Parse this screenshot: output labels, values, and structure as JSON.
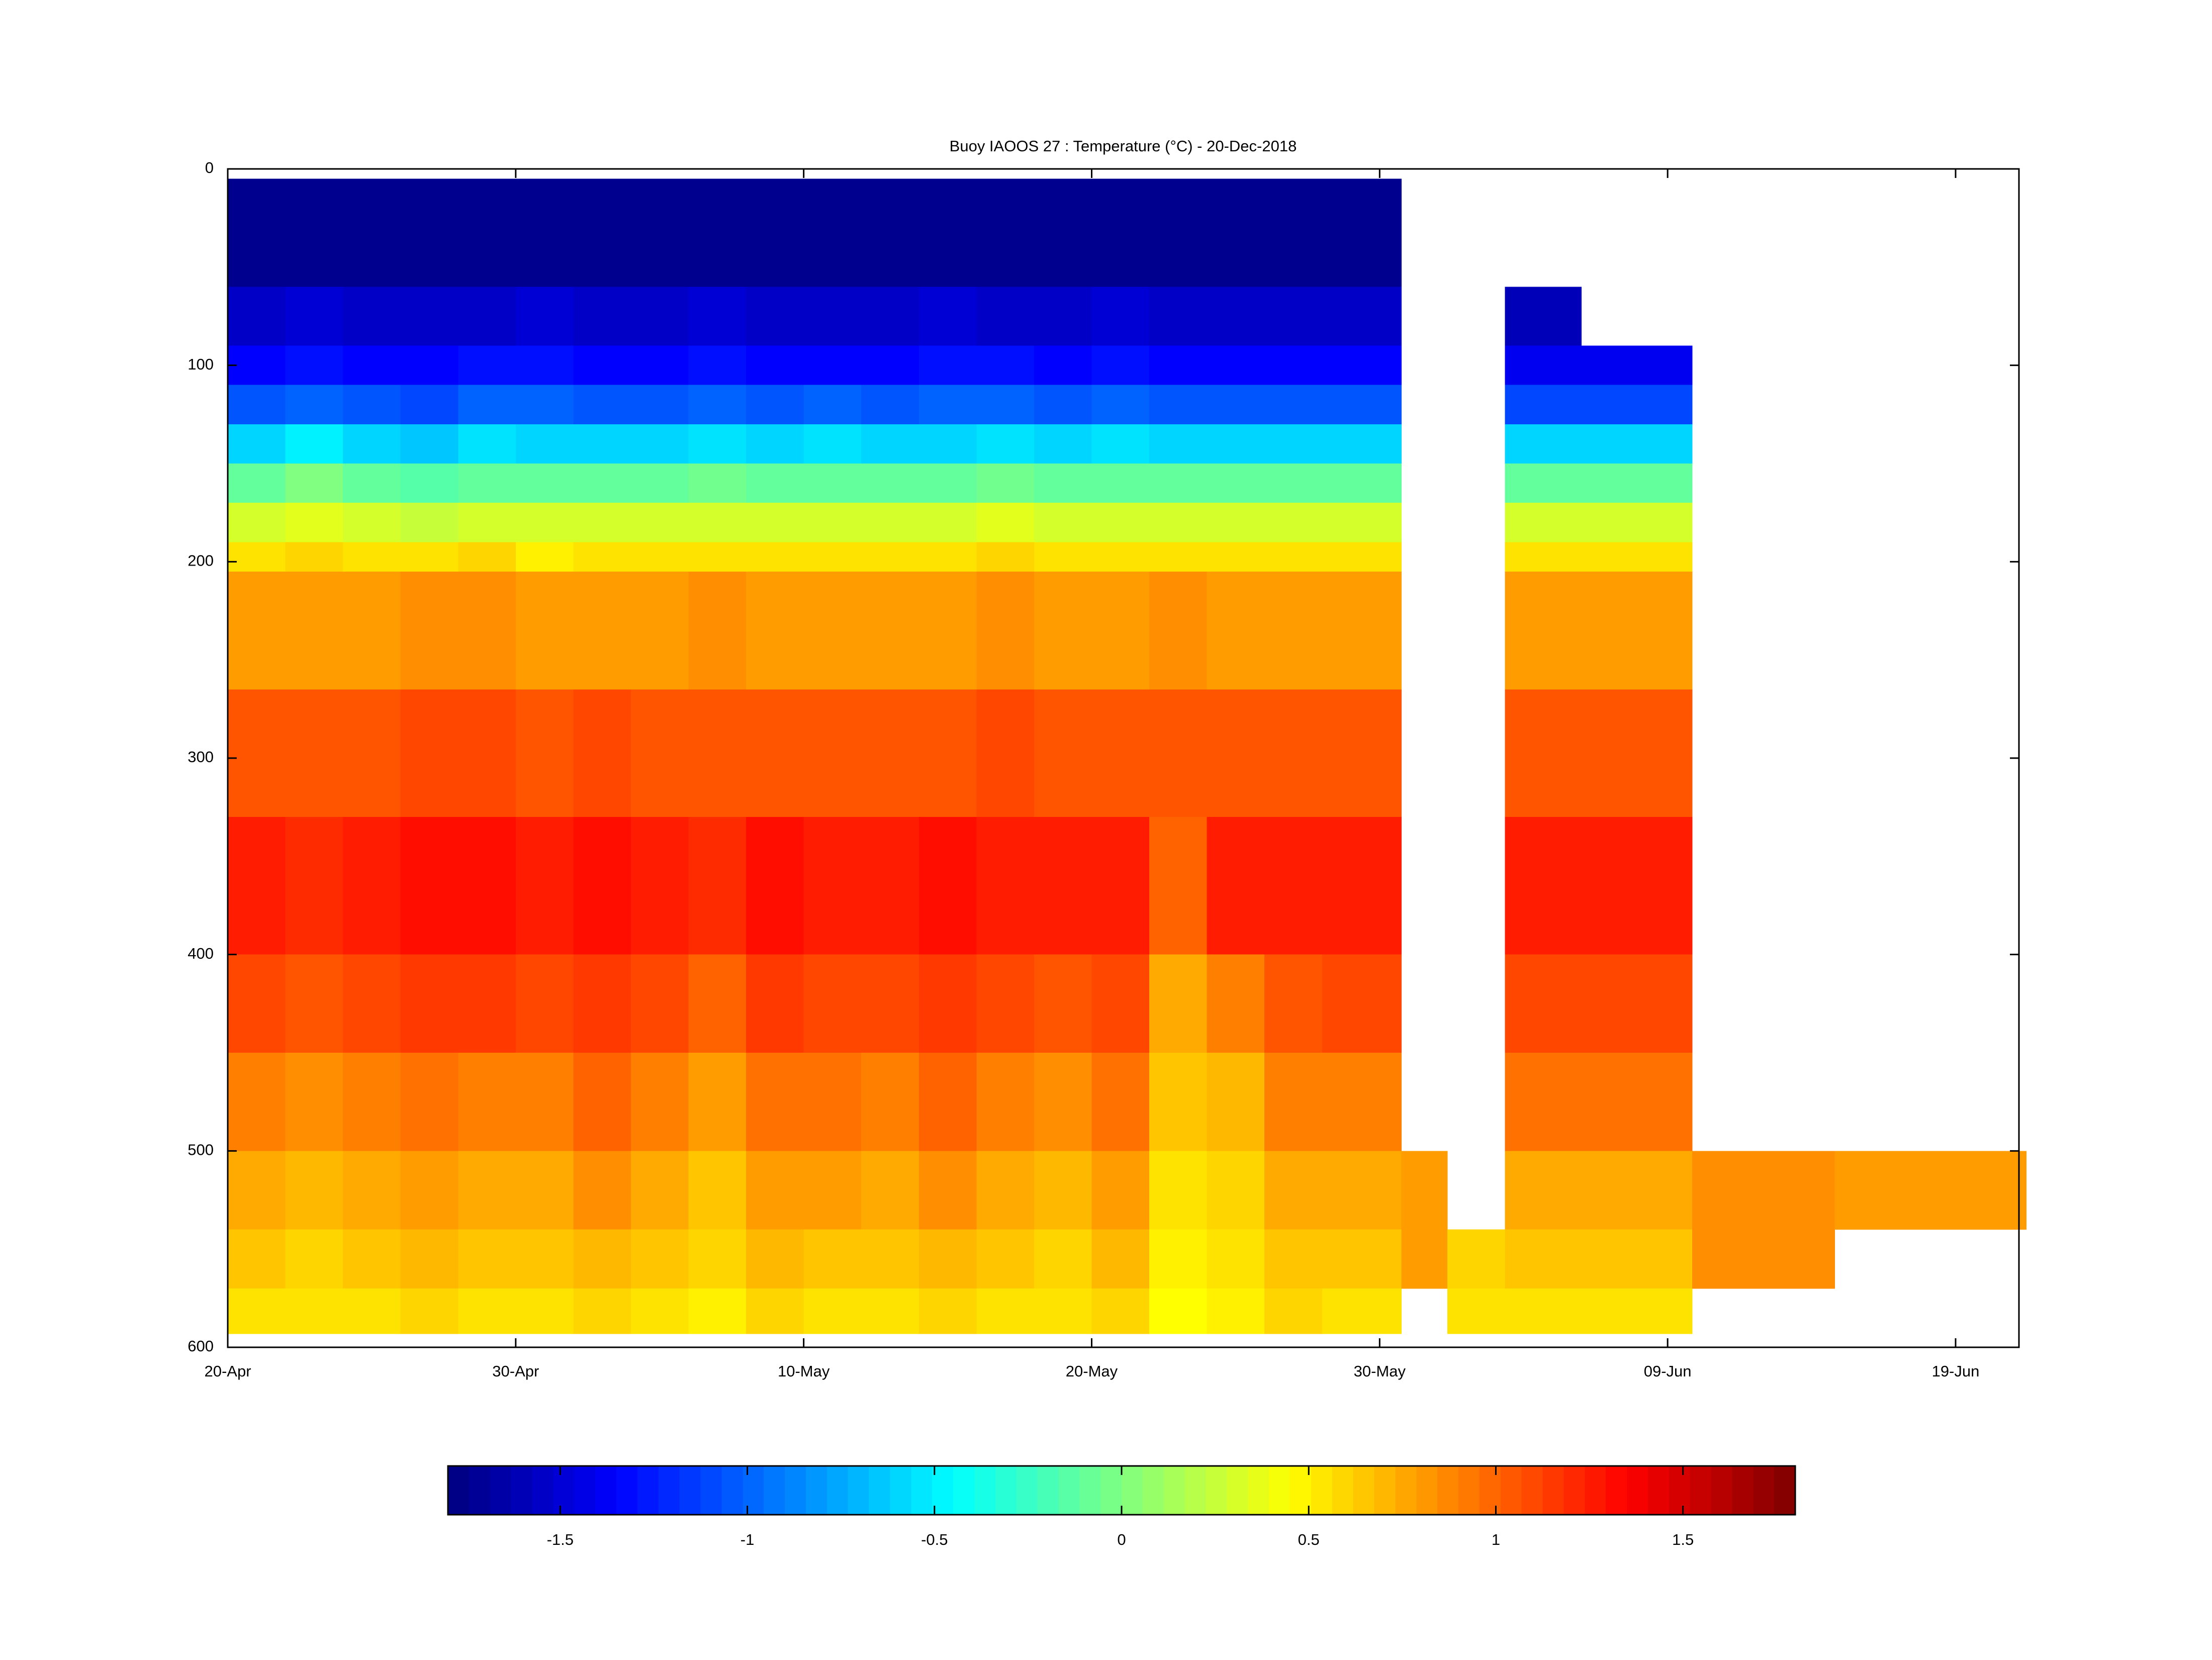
{
  "chart_data": {
    "type": "heatmap",
    "title": "Buoy IAOOS 27 : Temperature (°C) - 20-Dec-2018",
    "x_bins": [
      0,
      2,
      4,
      6,
      8,
      10,
      12,
      14,
      16,
      18,
      20,
      22,
      24,
      26,
      28,
      30,
      32,
      34,
      36,
      38,
      40.75,
      42.35,
      44.35,
      47,
      50.85,
      55.8,
      62.45
    ],
    "y_bins": [
      5,
      60,
      90,
      110,
      130,
      150,
      170,
      190,
      205,
      265,
      330,
      400,
      450,
      500,
      540,
      570,
      593
    ],
    "xlim": [
      0,
      62.2
    ],
    "ylim": [
      0,
      600
    ],
    "xticks": [
      {
        "value": 0,
        "label": "20-Apr"
      },
      {
        "value": 10,
        "label": "30-Apr"
      },
      {
        "value": 20,
        "label": "10-May"
      },
      {
        "value": 30,
        "label": "20-May"
      },
      {
        "value": 40,
        "label": "30-May"
      },
      {
        "value": 50,
        "label": "09-Jun"
      },
      {
        "value": 60,
        "label": "19-Jun"
      }
    ],
    "yticks": [
      0,
      100,
      200,
      300,
      400,
      500,
      600
    ],
    "clim": [
      -1.8,
      1.8
    ],
    "cticks": [
      -1.5,
      -1,
      -0.5,
      0,
      0.5,
      1,
      1.5
    ],
    "colormap": "jet",
    "values": [
      [
        -1.75,
        -1.55,
        -1.35,
        -1.05,
        -0.6,
        -0.1,
        0.3,
        0.55,
        0.8,
        1.05,
        1.25,
        1.1,
        0.9,
        0.75,
        0.65,
        0.55
      ],
      [
        -1.75,
        -1.5,
        -1.3,
        -1.0,
        -0.5,
        0,
        0.35,
        0.6,
        0.8,
        1.05,
        1.2,
        1.05,
        0.85,
        0.7,
        0.6,
        0.55
      ],
      [
        -1.75,
        -1.55,
        -1.35,
        -1.05,
        -0.6,
        -0.1,
        0.3,
        0.55,
        0.8,
        1.05,
        1.25,
        1.1,
        0.9,
        0.75,
        0.65,
        0.55
      ],
      [
        -1.75,
        -1.55,
        -1.35,
        -1.1,
        -0.65,
        -0.15,
        0.25,
        0.55,
        0.85,
        1.1,
        1.3,
        1.15,
        0.95,
        0.8,
        0.7,
        0.6
      ],
      [
        -1.75,
        -1.55,
        -1.3,
        -1.0,
        -0.55,
        -0.1,
        0.3,
        0.6,
        0.85,
        1.1,
        1.3,
        1.15,
        0.9,
        0.75,
        0.65,
        0.55
      ],
      [
        -1.75,
        -1.5,
        -1.3,
        -1.0,
        -0.6,
        -0.1,
        0.3,
        0.5,
        0.8,
        1.05,
        1.25,
        1.1,
        0.9,
        0.75,
        0.65,
        0.55
      ],
      [
        -1.75,
        -1.55,
        -1.35,
        -1.05,
        -0.6,
        -0.1,
        0.3,
        0.55,
        0.8,
        1.1,
        1.3,
        1.15,
        1.0,
        0.85,
        0.7,
        0.6
      ],
      [
        -1.75,
        -1.55,
        -1.35,
        -1.05,
        -0.6,
        -0.1,
        0.3,
        0.55,
        0.8,
        1.05,
        1.25,
        1.1,
        0.9,
        0.75,
        0.65,
        0.55
      ],
      [
        -1.75,
        -1.5,
        -1.3,
        -1.0,
        -0.55,
        -0.05,
        0.3,
        0.55,
        0.85,
        1.05,
        1.2,
        1.0,
        0.8,
        0.65,
        0.6,
        0.5
      ],
      [
        -1.75,
        -1.55,
        -1.35,
        -1.05,
        -0.6,
        -0.1,
        0.3,
        0.55,
        0.8,
        1.05,
        1.3,
        1.15,
        0.95,
        0.8,
        0.7,
        0.6
      ],
      [
        -1.75,
        -1.55,
        -1.35,
        -1.0,
        -0.55,
        -0.1,
        0.3,
        0.55,
        0.8,
        1.05,
        1.25,
        1.1,
        0.95,
        0.8,
        0.65,
        0.55
      ],
      [
        -1.75,
        -1.55,
        -1.35,
        -1.05,
        -0.6,
        -0.1,
        0.3,
        0.55,
        0.8,
        1.05,
        1.25,
        1.1,
        0.9,
        0.75,
        0.65,
        0.55
      ],
      [
        -1.75,
        -1.5,
        -1.3,
        -1.0,
        -0.6,
        -0.1,
        0.3,
        0.55,
        0.8,
        1.05,
        1.3,
        1.15,
        1.0,
        0.85,
        0.7,
        0.6
      ],
      [
        -1.75,
        -1.55,
        -1.3,
        -1.0,
        -0.55,
        -0.05,
        0.35,
        0.6,
        0.85,
        1.1,
        1.25,
        1.1,
        0.9,
        0.75,
        0.65,
        0.55
      ],
      [
        -1.75,
        -1.55,
        -1.35,
        -1.05,
        -0.6,
        -0.1,
        0.3,
        0.55,
        0.8,
        1.05,
        1.25,
        1.05,
        0.85,
        0.7,
        0.6,
        0.55
      ],
      [
        -1.75,
        -1.5,
        -1.3,
        -1.0,
        -0.55,
        -0.1,
        0.3,
        0.55,
        0.8,
        1.05,
        1.25,
        1.1,
        0.95,
        0.8,
        0.7,
        0.6
      ],
      [
        -1.75,
        -1.55,
        -1.35,
        -1.05,
        -0.6,
        -0.1,
        0.3,
        0.55,
        0.85,
        1.05,
        1.0,
        0.75,
        0.65,
        0.55,
        0.5,
        0.45
      ],
      [
        -1.75,
        -1.55,
        -1.35,
        -1.05,
        -0.6,
        -0.1,
        0.3,
        0.55,
        0.8,
        1.05,
        1.25,
        0.9,
        0.7,
        0.6,
        0.55,
        0.5
      ],
      [
        -1.75,
        -1.55,
        -1.35,
        -1.05,
        -0.6,
        -0.1,
        0.3,
        0.55,
        0.8,
        1.05,
        1.25,
        1.05,
        0.9,
        0.75,
        0.65,
        0.6
      ],
      [
        -1.75,
        -1.55,
        -1.35,
        -1.05,
        -0.6,
        -0.1,
        0.3,
        0.55,
        0.8,
        1.05,
        1.25,
        1.1,
        0.9,
        0.75,
        0.65,
        0.55
      ],
      [
        null,
        null,
        null,
        null,
        null,
        null,
        null,
        null,
        null,
        null,
        null,
        null,
        null,
        0.8,
        0.8,
        null
      ],
      [
        null,
        null,
        null,
        null,
        null,
        null,
        null,
        null,
        null,
        null,
        null,
        null,
        null,
        null,
        0.6,
        0.55
      ],
      [
        null,
        -1.6,
        -1.4,
        -1.1,
        -0.6,
        -0.1,
        0.3,
        0.55,
        0.8,
        1.05,
        1.25,
        1.1,
        0.95,
        0.75,
        0.65,
        0.55
      ],
      [
        null,
        null,
        -1.4,
        -1.1,
        -0.6,
        -0.1,
        0.3,
        0.55,
        0.8,
        1.05,
        1.25,
        1.1,
        0.95,
        0.75,
        0.65,
        0.55
      ],
      [
        null,
        null,
        null,
        null,
        null,
        null,
        null,
        null,
        null,
        null,
        null,
        null,
        null,
        0.85,
        0.85,
        null
      ],
      [
        null,
        null,
        null,
        null,
        null,
        null,
        null,
        null,
        null,
        null,
        null,
        null,
        null,
        0.8,
        null,
        null
      ]
    ]
  }
}
